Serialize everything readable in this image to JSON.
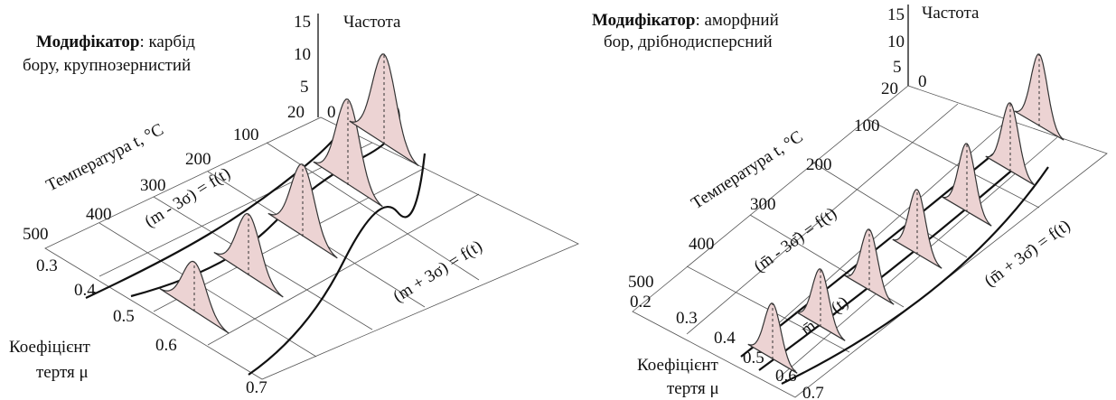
{
  "panels": [
    {
      "modifier_label": "Модифікатор",
      "modifier_lines": [
        ": карбід",
        "бору, крупнозернистий"
      ],
      "frequency_axis": {
        "label": "Частота",
        "ticks": [
          15,
          10,
          5,
          0
        ]
      },
      "temperature_axis": {
        "label": "Температура t, °C",
        "ticks": [
          20,
          100,
          200,
          300,
          400,
          500
        ]
      },
      "friction_axis": {
        "label_lines": [
          "Коефіцієнт",
          "тертя μ"
        ],
        "ticks": [
          0.3,
          0.4,
          0.5,
          0.6,
          0.7
        ]
      },
      "annotations": [
        "(m - 3σ) = f(t)",
        "(m + 3σ) = f(t)"
      ]
    },
    {
      "modifier_label": "Модифікатор",
      "modifier_lines": [
        ": аморфний",
        "бор, дрібнодисперсний"
      ],
      "frequency_axis": {
        "label": "Частота",
        "ticks": [
          15,
          10,
          5,
          0
        ]
      },
      "temperature_axis": {
        "label": "Температура t, °C",
        "ticks": [
          20,
          100,
          200,
          300,
          400,
          500
        ]
      },
      "friction_axis": {
        "label_lines": [
          "Коефіцієнт",
          "тертя μ"
        ],
        "ticks": [
          0.2,
          0.3,
          0.4,
          0.5,
          0.6,
          0.7
        ]
      },
      "annotations": [
        "(m̄ - 3σ̄) = f(t)",
        "(m̄ + 3σ̄) = f(t)",
        "m̄ = f(t)"
      ]
    }
  ]
}
